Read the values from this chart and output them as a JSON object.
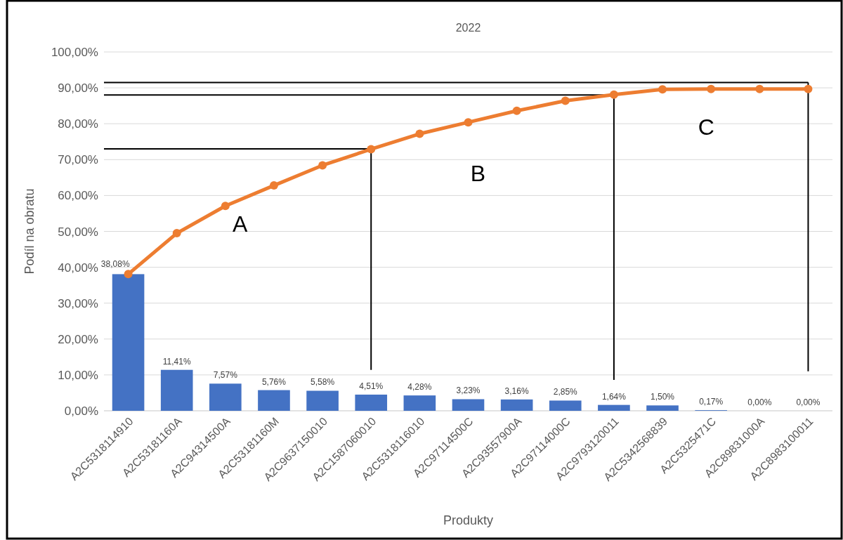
{
  "chart_data": {
    "type": "bar",
    "title": "2022",
    "xlabel": "Produkty",
    "ylabel": "Podíl na obratu",
    "categories": [
      "A2C5318114910",
      "A2C53181160A",
      "A2C94314500A",
      "A2C53181160M",
      "A2C9637150010",
      "A2C1587060010",
      "A2C5318116010",
      "A2C97114500C",
      "A2C93557900A",
      "A2C97114000C",
      "A2C9793120011",
      "A2C5342568839",
      "A2C5325471C",
      "A2C89831000A",
      "A2C8983100011"
    ],
    "series": [
      {
        "color": "#4472c4",
        "values": [
          38.08,
          11.41,
          7.57,
          5.76,
          5.58,
          4.51,
          4.28,
          3.23,
          3.16,
          2.85,
          1.64,
          1.5,
          0.17,
          0.0,
          0.0
        ],
        "value_labels": [
          "38,08%",
          "11,41%",
          "7,57%",
          "5,76%",
          "5,58%",
          "4,51%",
          "4,28%",
          "3,23%",
          "3,16%",
          "2,85%",
          "1,64%",
          "1,50%",
          "0,17%",
          "0,00%",
          "0,00%"
        ]
      },
      {
        "type": "line",
        "color": "#ed7d31",
        "marker": "circle",
        "values": [
          38.1,
          49.5,
          57.1,
          62.8,
          68.4,
          72.9,
          77.2,
          80.4,
          83.6,
          86.4,
          88.1,
          89.6,
          89.7,
          89.7,
          89.7
        ]
      }
    ],
    "ylim": [
      0,
      100
    ],
    "yticks": [
      {
        "value": 0,
        "label": "0,00%"
      },
      {
        "value": 10,
        "label": "10,00%"
      },
      {
        "value": 20,
        "label": "20,00%"
      },
      {
        "value": 30,
        "label": "30,00%"
      },
      {
        "value": 40,
        "label": "40,00%"
      },
      {
        "value": 50,
        "label": "50,00%"
      },
      {
        "value": 60,
        "label": "60,00%"
      },
      {
        "value": 70,
        "label": "70,00%"
      },
      {
        "value": 80,
        "label": "80,00%"
      },
      {
        "value": 90,
        "label": "90,00%"
      },
      {
        "value": 100,
        "label": "100,00%"
      }
    ],
    "ref_lines": [
      {
        "axis": "y",
        "value": 73,
        "color": "#000000"
      },
      {
        "axis": "y",
        "value": 88,
        "color": "#000000"
      },
      {
        "axis": "y",
        "value": 91.5,
        "color": "#000000"
      },
      {
        "axis": "x",
        "value": "A2C1587060010",
        "color": "#000000"
      },
      {
        "axis": "x",
        "value": "A2C9793120011",
        "color": "#000000"
      },
      {
        "axis": "x",
        "value": "A2C8983100011",
        "color": "#000000"
      }
    ],
    "grid": "y",
    "annotations": [
      "A",
      "B",
      "C"
    ]
  }
}
